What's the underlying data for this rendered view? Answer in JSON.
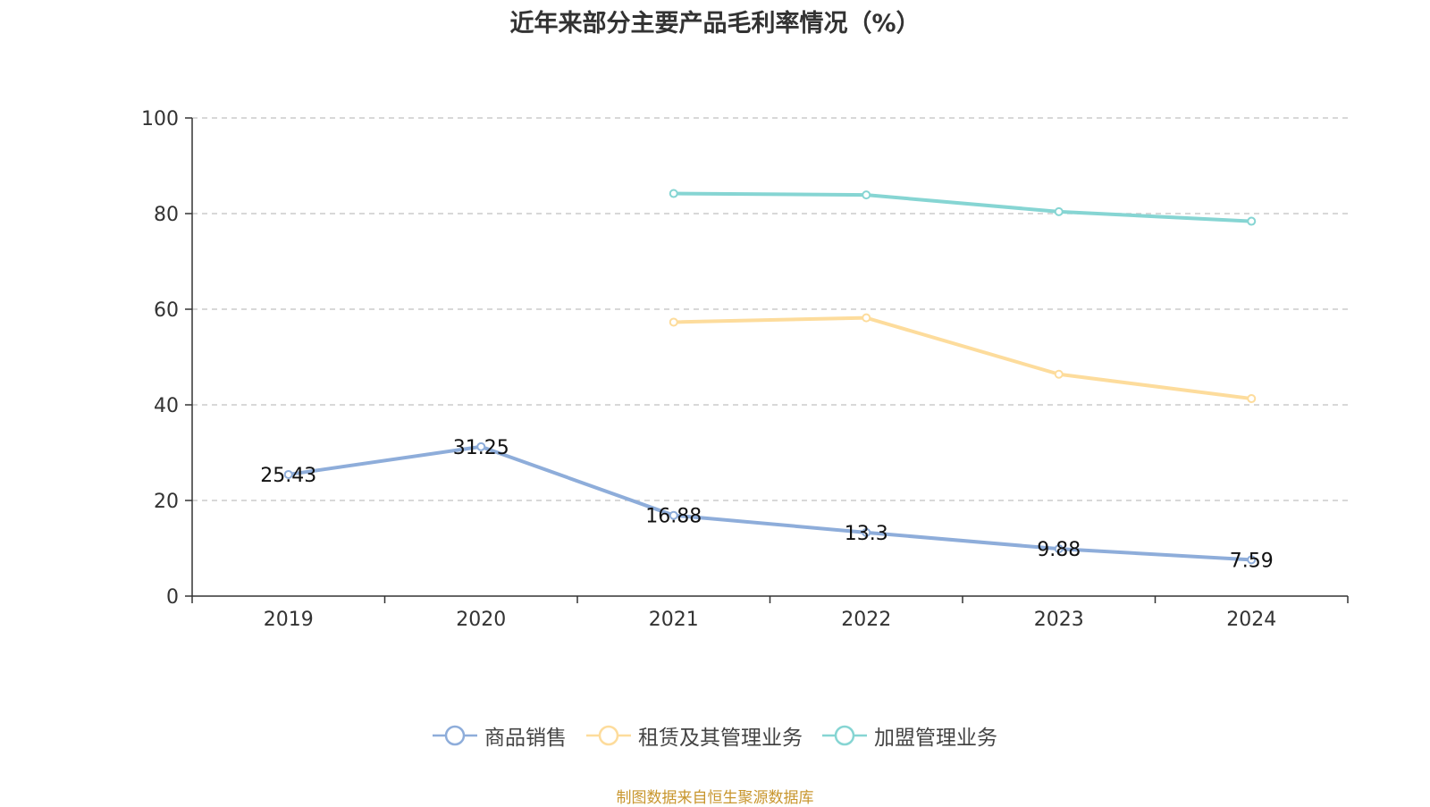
{
  "chart_data": {
    "type": "line",
    "title": "近年来部分主要产品毛利率情况（%）",
    "categories": [
      "2019",
      "2020",
      "2021",
      "2022",
      "2023",
      "2024"
    ],
    "ylim": [
      0,
      100
    ],
    "yticks": [
      0,
      20,
      40,
      60,
      80,
      100
    ],
    "grid": true,
    "legend_position": "bottom",
    "series": [
      {
        "name": "商品销售",
        "color": "#8EADDA",
        "values": [
          25.43,
          31.25,
          16.88,
          13.3,
          9.88,
          7.59
        ],
        "labels": [
          "25.43",
          "31.25",
          "16.88",
          "13.3",
          "9.88",
          "7.59"
        ]
      },
      {
        "name": "租赁及其管理业务",
        "color": "#FDDC9C",
        "values": [
          null,
          null,
          57.3,
          58.2,
          46.4,
          41.3
        ],
        "labels": []
      },
      {
        "name": "加盟管理业务",
        "color": "#86D5D3",
        "values": [
          null,
          null,
          84.2,
          83.9,
          80.4,
          78.4
        ],
        "labels": []
      }
    ]
  },
  "source_note": "制图数据来自恒生聚源数据库",
  "source_color": "#C8962E"
}
